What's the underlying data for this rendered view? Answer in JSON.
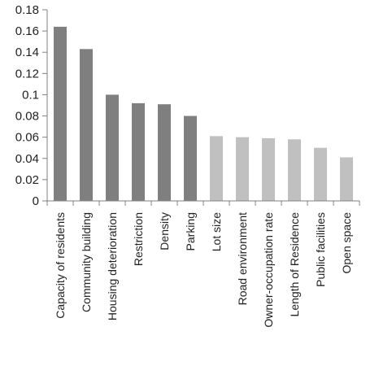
{
  "chart_data": {
    "type": "bar",
    "categories": [
      "Capacity of residents",
      "Community building",
      "Housing deterioration",
      "Restriction",
      "Density",
      "Parking",
      "Lot size",
      "Road environment",
      "Owner-occupation rate",
      "Length of Residence",
      "Public facilities",
      "Open space"
    ],
    "values": [
      0.164,
      0.143,
      0.1,
      0.092,
      0.091,
      0.08,
      0.061,
      0.06,
      0.059,
      0.058,
      0.05,
      0.041
    ],
    "bar_colors": [
      "#7f7f7f",
      "#7f7f7f",
      "#7f7f7f",
      "#7f7f7f",
      "#7f7f7f",
      "#7f7f7f",
      "#c0c0c0",
      "#c0c0c0",
      "#c0c0c0",
      "#c0c0c0",
      "#c0c0c0",
      "#c0c0c0"
    ],
    "y_ticks": [
      "0",
      "0.02",
      "0.04",
      "0.06",
      "0.08",
      "0.1",
      "0.12",
      "0.14",
      "0.16",
      "0.18"
    ],
    "ylim": [
      0,
      0.18
    ],
    "title": "",
    "xlabel": "",
    "ylabel": "",
    "grid": false,
    "axis_color": "#808080"
  }
}
